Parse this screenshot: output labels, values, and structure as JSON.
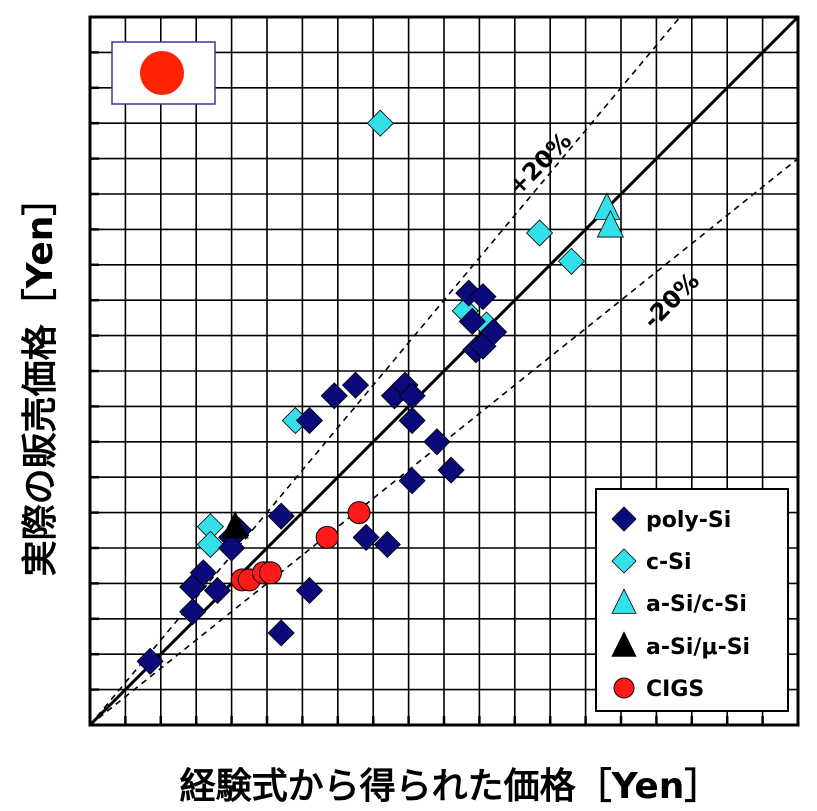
{
  "chart_data": {
    "type": "scatter",
    "xlabel": "経験式から得られた価格［Yen］",
    "ylabel": "実際の販売価格［Yen］",
    "xlim": [
      0,
      20
    ],
    "ylim": [
      0,
      20
    ],
    "grid": true,
    "legend_position": "bottom-right",
    "reference_lines": [
      {
        "label": "",
        "slope": 1.0,
        "style": "solid"
      },
      {
        "label": "+20%",
        "slope": 1.2,
        "style": "dashed"
      },
      {
        "label": "-20%",
        "slope": 0.8,
        "style": "dashed"
      }
    ],
    "series": [
      {
        "name": "poly-Si",
        "marker": "diamond",
        "color": "#0a0a7a",
        "points": [
          [
            1.7,
            1.8
          ],
          [
            2.9,
            3.2
          ],
          [
            2.9,
            3.9
          ],
          [
            3.6,
            3.8
          ],
          [
            4.0,
            5.3
          ],
          [
            4.2,
            5.5
          ],
          [
            5.4,
            2.6
          ],
          [
            5.4,
            5.9
          ],
          [
            6.2,
            3.8
          ],
          [
            6.2,
            8.6
          ],
          [
            6.9,
            9.3
          ],
          [
            7.5,
            9.6
          ],
          [
            7.8,
            5.3
          ],
          [
            8.4,
            5.1
          ],
          [
            8.6,
            9.3
          ],
          [
            8.9,
            9.6
          ],
          [
            9.1,
            9.3
          ],
          [
            9.1,
            8.6
          ],
          [
            9.1,
            6.9
          ],
          [
            9.8,
            8.0
          ],
          [
            10.2,
            7.2
          ],
          [
            10.7,
            12.2
          ],
          [
            10.8,
            11.4
          ],
          [
            10.9,
            10.6
          ],
          [
            11.1,
            12.1
          ],
          [
            11.1,
            10.7
          ],
          [
            11.4,
            11.1
          ],
          [
            3.2,
            4.3
          ],
          [
            4.0,
            5.0
          ]
        ]
      },
      {
        "name": "c-Si",
        "marker": "diamond",
        "color": "#33e0ea",
        "points": [
          [
            3.4,
            5.6
          ],
          [
            3.4,
            5.1
          ],
          [
            5.8,
            8.6
          ],
          [
            8.2,
            17.0
          ],
          [
            10.6,
            11.7
          ],
          [
            11.2,
            11.3
          ],
          [
            12.7,
            13.9
          ],
          [
            13.6,
            13.1
          ]
        ]
      },
      {
        "name": "a-Si/c-Si",
        "marker": "triangle",
        "color": "#33e0ea",
        "points": [
          [
            14.6,
            14.6
          ],
          [
            14.7,
            14.1
          ]
        ]
      },
      {
        "name": "a-Si/μ-Si",
        "marker": "triangle",
        "color": "#000000",
        "points": [
          [
            4.1,
            5.6
          ]
        ]
      },
      {
        "name": "CIGS",
        "marker": "circle",
        "color": "#ff1a1a",
        "points": [
          [
            4.3,
            4.1
          ],
          [
            4.5,
            4.1
          ],
          [
            4.9,
            4.3
          ],
          [
            5.1,
            4.3
          ],
          [
            6.7,
            5.3
          ],
          [
            7.6,
            6.0
          ]
        ]
      }
    ]
  },
  "flag_icon": "japan-flag-icon",
  "colors": {
    "axis": "#000000",
    "grid": "#000000",
    "flag_sun": "#ff2200",
    "flag_border": "#3a3a99",
    "poly_si": "#0a0a7a",
    "c_si": "#33e0ea",
    "cigs": "#ff1a1a"
  }
}
